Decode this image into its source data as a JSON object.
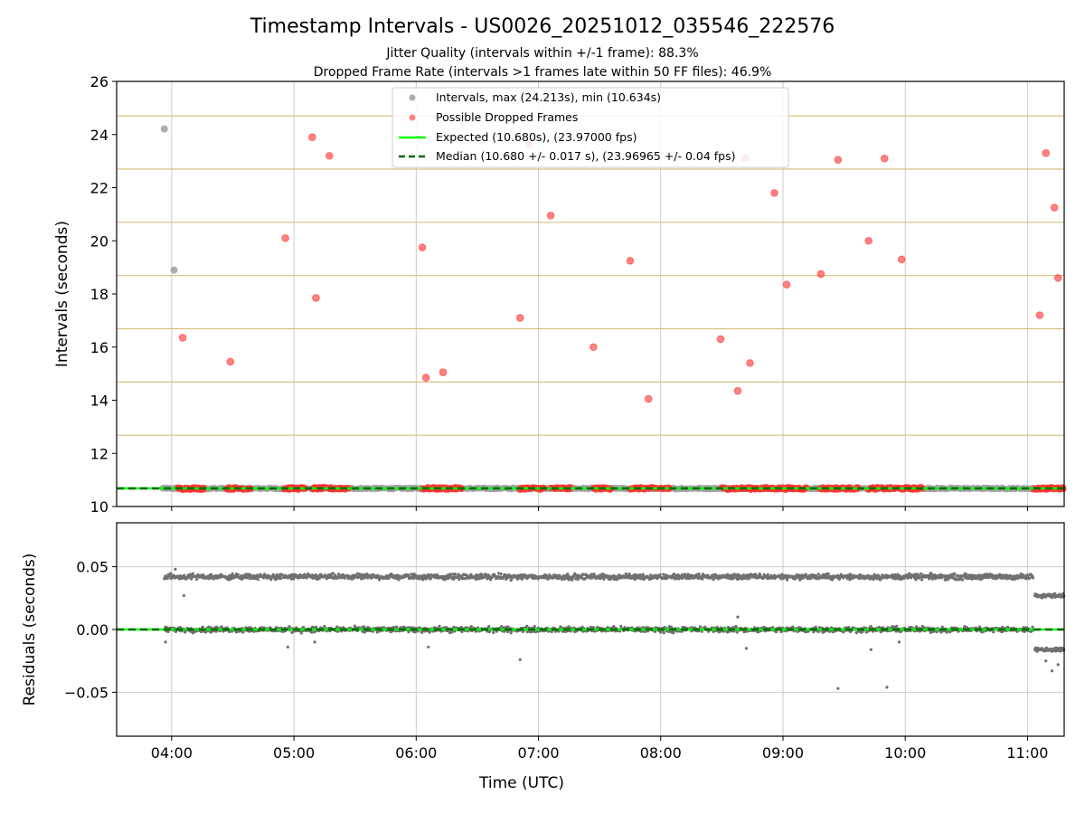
{
  "title": "Timestamp Intervals - US0026_20251012_035546_222576",
  "subtitle_1": "Jitter Quality (intervals within +/-1 frame): 88.3%",
  "subtitle_2": "Dropped Frame Rate (intervals >1 frames late within 50 FF files): 46.9%",
  "colors": {
    "intervals": "#a0a0a0",
    "dropped": "#ff3030",
    "expected": "#00ff00",
    "median": "#006400",
    "residual": "#707070",
    "frame_grid": "#d9bf80",
    "grid": "#cccccc"
  },
  "chart_data": [
    {
      "type": "scatter",
      "name": "intervals",
      "xlabel": "",
      "ylabel": "Intervals (seconds)",
      "ylim": [
        10,
        26
      ],
      "y_ticks": [
        10,
        12,
        14,
        16,
        18,
        20,
        22,
        24,
        26
      ],
      "y_tick_labels": [
        "10",
        "12",
        "14",
        "16",
        "18",
        "20",
        "22",
        "24",
        "26"
      ],
      "xlim_hours": [
        3.55,
        11.3
      ],
      "frame_gridlines": [
        10.68,
        12.683,
        14.686,
        16.689,
        18.692,
        20.695,
        22.698,
        24.701
      ],
      "legend": {
        "location": "upper center",
        "entries": [
          "Intervals, max (24.213s), min (10.634s)",
          "Possible Dropped Frames",
          "Expected (10.680s), (23.97000 fps)",
          "Median (10.680 +/- 0.017 s), (23.96965 +/- 0.04 fps)"
        ]
      },
      "expected": 10.68,
      "median": 10.68,
      "baseline": {
        "x_start": 3.92,
        "x_end": 11.3,
        "y": 10.68
      },
      "dense_dropped_clusters": [
        [
          4.05,
          4.27
        ],
        [
          4.45,
          4.65
        ],
        [
          4.92,
          5.1
        ],
        [
          5.15,
          5.45
        ],
        [
          6.05,
          6.38
        ],
        [
          6.85,
          7.05
        ],
        [
          7.1,
          7.27
        ],
        [
          7.45,
          7.6
        ],
        [
          7.75,
          8.08
        ],
        [
          8.5,
          8.95
        ],
        [
          8.95,
          9.2
        ],
        [
          9.3,
          9.62
        ],
        [
          9.7,
          10.15
        ],
        [
          11.05,
          11.3
        ]
      ],
      "series": [
        {
          "name": "Intervals",
          "x": [
            3.94,
            4.02
          ],
          "y": [
            24.213,
            18.9
          ]
        },
        {
          "name": "Possible Dropped Frames",
          "x": [
            4.09,
            4.48,
            4.93,
            5.15,
            5.18,
            5.29,
            6.05,
            6.08,
            6.22,
            6.85,
            6.92,
            7.1,
            7.45,
            7.75,
            7.9,
            8.49,
            8.63,
            8.69,
            8.73,
            8.93,
            9.03,
            9.31,
            9.45,
            9.7,
            9.83,
            9.97,
            11.1,
            11.15,
            11.22,
            11.25
          ],
          "y": [
            16.35,
            15.45,
            20.1,
            23.9,
            17.85,
            23.2,
            19.75,
            14.85,
            15.05,
            17.1,
            23.65,
            20.95,
            16.0,
            19.25,
            14.05,
            16.3,
            14.35,
            23.1,
            15.4,
            21.8,
            18.35,
            18.75,
            23.05,
            20.0,
            23.1,
            19.3,
            17.2,
            23.3,
            21.25,
            18.6
          ]
        }
      ]
    },
    {
      "type": "scatter",
      "name": "residuals",
      "xlabel": "Time (UTC)",
      "ylabel": "Residuals (seconds)",
      "ylim": [
        -0.085,
        0.085
      ],
      "y_ticks": [
        -0.05,
        0.0,
        0.05
      ],
      "y_tick_labels": [
        "−0.05",
        "0.00",
        "0.05"
      ],
      "xlim_hours": [
        3.55,
        11.3
      ],
      "x_ticks_hours": [
        4,
        5,
        6,
        7,
        8,
        9,
        10,
        11
      ],
      "x_tick_labels": [
        "04:00",
        "05:00",
        "06:00",
        "07:00",
        "08:00",
        "09:00",
        "10:00",
        "11:00"
      ],
      "bands": [
        {
          "name": "upper band",
          "x_start": 3.94,
          "x_end": 11.05,
          "center": 0.042,
          "spread": 0.0015
        },
        {
          "name": "zero band",
          "x_start": 3.94,
          "x_end": 11.05,
          "center": 0.0,
          "spread": 0.0015
        },
        {
          "name": "tail upper",
          "x_start": 11.06,
          "x_end": 11.3,
          "center": 0.027,
          "spread": 0.001
        },
        {
          "name": "tail lower",
          "x_start": 11.06,
          "x_end": 11.3,
          "center": -0.016,
          "spread": 0.001
        }
      ],
      "outliers": {
        "x": [
          3.95,
          4.03,
          4.1,
          4.95,
          5.17,
          6.1,
          6.85,
          8.63,
          8.7,
          9.45,
          9.72,
          9.85,
          9.95,
          11.15,
          11.2,
          11.25
        ],
        "y": [
          -0.01,
          0.048,
          0.027,
          -0.014,
          -0.01,
          -0.014,
          -0.024,
          0.01,
          -0.015,
          -0.047,
          -0.016,
          -0.046,
          -0.01,
          -0.025,
          -0.033,
          -0.028
        ]
      }
    }
  ]
}
